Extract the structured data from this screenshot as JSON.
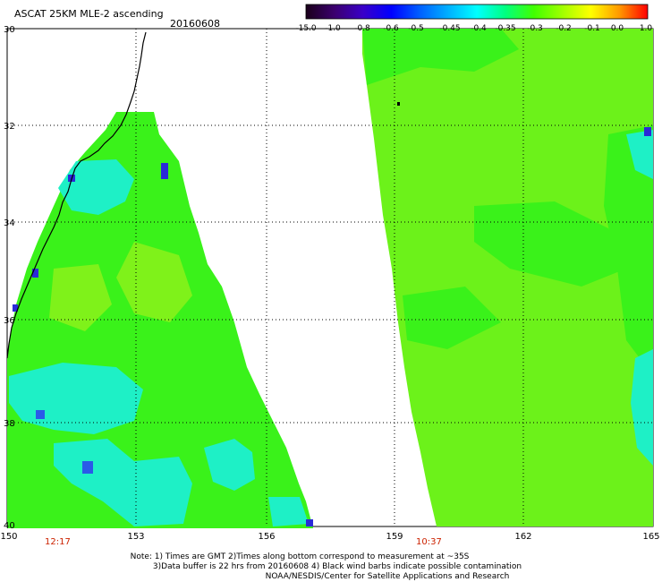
{
  "header": {
    "title": "ASCAT 25KM MLE-2 ascending",
    "date": "20160608"
  },
  "colorbar": {
    "labels": [
      "-15.0",
      "-1.0",
      "-0.8",
      "-0.6",
      "-0.5",
      "-0.45",
      "-0.4",
      "-0.35",
      "-0.3",
      "-0.2",
      "-0.1",
      "0.0",
      "1.0"
    ],
    "colors": [
      "#1a001a",
      "#3b006e",
      "#3a00c8",
      "#0000ff",
      "#0060ff",
      "#00b0ff",
      "#00ffff",
      "#00ff80",
      "#40ff00",
      "#a0ff00",
      "#ffff00",
      "#ff9900",
      "#ff0000"
    ]
  },
  "axes": {
    "lat_labels": [
      "30",
      "32",
      "34",
      "36",
      "38",
      "40"
    ],
    "lon_labels_left": [
      "150",
      "153",
      "156"
    ],
    "lon_labels_right": [
      "159",
      "162",
      "165"
    ],
    "lat_range": [
      -40,
      -30
    ],
    "lon_range": [
      150,
      165
    ]
  },
  "swaths": {
    "left_time": "12:17",
    "right_time": "10:37"
  },
  "notes": {
    "line1": "Note: 1) Times are GMT 2)Times along bottom correspond to measurement at ~35S",
    "line2": "3)Data buffer is 22 hrs from 20160608 4) Black wind barbs indicate possible contamination",
    "line3": "NOAA/NESDIS/Center for Satellite Applications and Research"
  },
  "colors": {
    "time_label": "#cc2200",
    "base_green": "#33ff00",
    "cyan": "#00ffff",
    "coast": "#000000"
  }
}
